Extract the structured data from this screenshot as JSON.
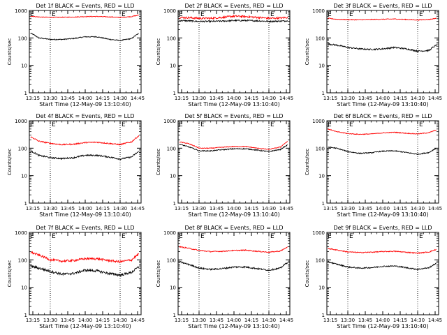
{
  "figure": {
    "start_time_label": "Start Time (12-May-09 13:10:40)",
    "ylabel": "Counts/sec",
    "legend_text": "BLACK = Events, RED = LLD",
    "marker_label": "E",
    "colors": {
      "events": "#000000",
      "lld": "#ff0000",
      "background": "#ffffff"
    }
  },
  "chart_data": [
    {
      "type": "line",
      "panel": "Det 1f",
      "title": "Det 1f  BLACK = Events, RED = LLD",
      "xlabel": "Start Time (12-May-09 13:10:40)",
      "ylabel": "Counts/sec",
      "x_ticks": [
        "13:15",
        "13:30",
        "13:45",
        "14:00",
        "14:15",
        "14:30",
        "14:45"
      ],
      "y_ticks": [
        "1",
        "10",
        "100",
        "1000"
      ],
      "yscale": "log",
      "ylim": [
        1,
        1000
      ],
      "xlim": [
        "13:12",
        "14:48"
      ],
      "event_markers": [
        "13:30",
        "14:30"
      ],
      "x": [
        "13:13",
        "13:20",
        "13:30",
        "13:40",
        "13:50",
        "14:00",
        "14:10",
        "14:20",
        "14:30",
        "14:40",
        "14:46"
      ],
      "series": [
        {
          "name": "Events",
          "color": "#000000",
          "noise": 0.04,
          "values": [
            150,
            100,
            88,
            88,
            95,
            110,
            110,
            90,
            80,
            95,
            145
          ]
        },
        {
          "name": "LLD",
          "color": "#ff0000",
          "noise": 0.03,
          "values": [
            620,
            580,
            560,
            565,
            575,
            600,
            605,
            585,
            560,
            600,
            680
          ]
        }
      ]
    },
    {
      "type": "line",
      "panel": "Det 2f",
      "title": "Det 2f  BLACK = Events, RED = LLD",
      "xlabel": "Start Time (12-May-09 13:10:40)",
      "ylabel": "Counts/sec",
      "x_ticks": [
        "13:15",
        "13:30",
        "13:45",
        "14:00",
        "14:15",
        "14:30",
        "14:45"
      ],
      "y_ticks": [
        "1",
        "10",
        "100",
        "1000"
      ],
      "yscale": "log",
      "ylim": [
        1,
        1000
      ],
      "xlim": [
        "13:12",
        "14:48"
      ],
      "event_markers": [
        "13:30",
        "14:30"
      ],
      "x": [
        "13:13",
        "13:20",
        "13:30",
        "13:40",
        "13:50",
        "14:00",
        "14:10",
        "14:20",
        "14:30",
        "14:40",
        "14:46"
      ],
      "series": [
        {
          "name": "Events",
          "color": "#000000",
          "noise": 0.06,
          "values": [
            430,
            420,
            400,
            400,
            410,
            430,
            430,
            420,
            400,
            410,
            420
          ]
        },
        {
          "name": "LLD",
          "color": "#ff0000",
          "noise": 0.08,
          "values": [
            560,
            550,
            520,
            520,
            560,
            620,
            600,
            560,
            520,
            530,
            560
          ]
        }
      ]
    },
    {
      "type": "line",
      "panel": "Det 3f",
      "title": "Det 3f  BLACK = Events, RED = LLD",
      "xlabel": "Start Time (12-May-09 13:10:40)",
      "ylabel": "Counts/sec",
      "x_ticks": [
        "13:15",
        "13:30",
        "13:45",
        "14:00",
        "14:15",
        "14:30",
        "14:45"
      ],
      "y_ticks": [
        "1",
        "10",
        "100",
        "1000"
      ],
      "yscale": "log",
      "ylim": [
        1,
        1000
      ],
      "xlim": [
        "13:12",
        "14:48"
      ],
      "event_markers": [
        "13:30",
        "14:30"
      ],
      "x": [
        "13:13",
        "13:20",
        "13:30",
        "13:40",
        "13:50",
        "14:00",
        "14:10",
        "14:20",
        "14:30",
        "14:40",
        "14:46"
      ],
      "series": [
        {
          "name": "Events",
          "color": "#000000",
          "noise": 0.06,
          "values": [
            60,
            55,
            45,
            40,
            38,
            40,
            45,
            40,
            33,
            35,
            55
          ]
        },
        {
          "name": "LLD",
          "color": "#ff0000",
          "noise": 0.03,
          "values": [
            520,
            480,
            460,
            460,
            470,
            480,
            490,
            470,
            450,
            470,
            520
          ]
        }
      ]
    },
    {
      "type": "line",
      "panel": "Det 4f",
      "title": "Det 4f  BLACK = Events, RED = LLD",
      "xlabel": "Start Time (12-May-09 13:10:40)",
      "ylabel": "Counts/sec",
      "x_ticks": [
        "13:15",
        "13:30",
        "13:45",
        "14:00",
        "14:15",
        "14:30",
        "14:45"
      ],
      "y_ticks": [
        "1",
        "10",
        "100",
        "1000"
      ],
      "yscale": "log",
      "ylim": [
        1,
        1000
      ],
      "xlim": [
        "13:12",
        "14:48"
      ],
      "event_markers": [
        "13:30",
        "14:30"
      ],
      "x": [
        "13:13",
        "13:20",
        "13:30",
        "13:40",
        "13:50",
        "14:00",
        "14:10",
        "14:20",
        "14:30",
        "14:40",
        "14:46"
      ],
      "series": [
        {
          "name": "Events",
          "color": "#000000",
          "noise": 0.06,
          "values": [
            80,
            55,
            45,
            42,
            45,
            55,
            55,
            48,
            40,
            48,
            75
          ]
        },
        {
          "name": "LLD",
          "color": "#ff0000",
          "noise": 0.05,
          "values": [
            260,
            180,
            150,
            135,
            140,
            160,
            165,
            150,
            135,
            170,
            280
          ]
        }
      ]
    },
    {
      "type": "line",
      "panel": "Det 5f",
      "title": "Det 5f  BLACK = Events, RED = LLD",
      "xlabel": "Start Time (12-May-09 13:10:40)",
      "ylabel": "Counts/sec",
      "x_ticks": [
        "13:15",
        "13:30",
        "13:45",
        "14:00",
        "14:15",
        "14:30",
        "14:45"
      ],
      "y_ticks": [
        "1",
        "10",
        "100",
        "1000"
      ],
      "yscale": "log",
      "ylim": [
        1,
        1000
      ],
      "xlim": [
        "13:12",
        "14:48"
      ],
      "event_markers": [
        "13:30",
        "14:30"
      ],
      "x": [
        "13:13",
        "13:20",
        "13:30",
        "13:40",
        "13:50",
        "14:00",
        "14:10",
        "14:20",
        "14:30",
        "14:40",
        "14:46"
      ],
      "series": [
        {
          "name": "Events",
          "color": "#000000",
          "noise": 0.04,
          "values": [
            140,
            115,
            80,
            80,
            88,
            95,
            95,
            85,
            75,
            90,
            130
          ]
        },
        {
          "name": "LLD",
          "color": "#ff0000",
          "noise": 0.03,
          "values": [
            170,
            150,
            100,
            100,
            108,
            115,
            115,
            100,
            90,
            110,
            175
          ]
        }
      ]
    },
    {
      "type": "line",
      "panel": "Det 6f",
      "title": "Det 6f  BLACK = Events, RED = LLD",
      "xlabel": "Start Time (12-May-09 13:10:40)",
      "ylabel": "Counts/sec",
      "x_ticks": [
        "13:15",
        "13:30",
        "13:45",
        "14:00",
        "14:15",
        "14:30",
        "14:45"
      ],
      "y_ticks": [
        "1",
        "10",
        "100",
        "1000"
      ],
      "yscale": "log",
      "ylim": [
        1,
        1000
      ],
      "xlim": [
        "13:12",
        "14:48"
      ],
      "event_markers": [
        "13:30",
        "14:30"
      ],
      "x": [
        "13:13",
        "13:20",
        "13:30",
        "13:40",
        "13:50",
        "14:00",
        "14:10",
        "14:20",
        "14:30",
        "14:40",
        "14:46"
      ],
      "series": [
        {
          "name": "Events",
          "color": "#000000",
          "noise": 0.04,
          "values": [
            110,
            100,
            75,
            65,
            68,
            78,
            80,
            70,
            60,
            70,
            100
          ]
        },
        {
          "name": "LLD",
          "color": "#ff0000",
          "noise": 0.03,
          "values": [
            500,
            400,
            340,
            320,
            330,
            360,
            380,
            350,
            330,
            370,
            460
          ]
        }
      ]
    },
    {
      "type": "line",
      "panel": "Det 7f",
      "title": "Det 7f  BLACK = Events, RED = LLD",
      "xlabel": "Start Time (12-May-09 13:10:40)",
      "ylabel": "Counts/sec",
      "x_ticks": [
        "13:15",
        "13:30",
        "13:45",
        "14:00",
        "14:15",
        "14:30",
        "14:45"
      ],
      "y_ticks": [
        "1",
        "10",
        "100",
        "1000"
      ],
      "yscale": "log",
      "ylim": [
        1,
        1000
      ],
      "xlim": [
        "13:12",
        "14:48"
      ],
      "event_markers": [
        "13:30",
        "14:30"
      ],
      "x": [
        "13:13",
        "13:20",
        "13:30",
        "13:40",
        "13:50",
        "14:00",
        "14:10",
        "14:20",
        "14:30",
        "14:40",
        "14:46"
      ],
      "series": [
        {
          "name": "Events",
          "color": "#000000",
          "noise": 0.1,
          "values": [
            60,
            50,
            38,
            30,
            32,
            42,
            40,
            32,
            28,
            35,
            55
          ]
        },
        {
          "name": "LLD",
          "color": "#ff0000",
          "noise": 0.09,
          "values": [
            190,
            150,
            100,
            90,
            95,
            110,
            110,
            95,
            85,
            100,
            160
          ]
        }
      ]
    },
    {
      "type": "line",
      "panel": "Det 8f",
      "title": "Det 8f  BLACK = Events, RED = LLD",
      "xlabel": "Start Time (12-May-09 13:10:40)",
      "ylabel": "Counts/sec",
      "x_ticks": [
        "13:15",
        "13:30",
        "13:45",
        "14:00",
        "14:15",
        "14:30",
        "14:45"
      ],
      "y_ticks": [
        "1",
        "10",
        "100",
        "1000"
      ],
      "yscale": "log",
      "ylim": [
        1,
        1000
      ],
      "xlim": [
        "13:12",
        "14:48"
      ],
      "event_markers": [
        "13:30",
        "14:30"
      ],
      "x": [
        "13:13",
        "13:20",
        "13:30",
        "13:40",
        "13:50",
        "14:00",
        "14:10",
        "14:20",
        "14:30",
        "14:40",
        "14:46"
      ],
      "series": [
        {
          "name": "Events",
          "color": "#000000",
          "noise": 0.06,
          "values": [
            85,
            70,
            50,
            45,
            48,
            55,
            55,
            48,
            42,
            50,
            80
          ]
        },
        {
          "name": "LLD",
          "color": "#ff0000",
          "noise": 0.04,
          "values": [
            300,
            270,
            220,
            200,
            205,
            220,
            225,
            205,
            190,
            210,
            290
          ]
        }
      ]
    },
    {
      "type": "line",
      "panel": "Det 9f",
      "title": "Det 9f  BLACK = Events, RED = LLD",
      "xlabel": "Start Time (12-May-09 13:10:40)",
      "ylabel": "Counts/sec",
      "x_ticks": [
        "13:15",
        "13:30",
        "13:45",
        "14:00",
        "14:15",
        "14:30",
        "14:45"
      ],
      "y_ticks": [
        "1",
        "10",
        "100",
        "1000"
      ],
      "yscale": "log",
      "ylim": [
        1,
        1000
      ],
      "xlim": [
        "13:12",
        "14:48"
      ],
      "event_markers": [
        "13:30",
        "14:30"
      ],
      "x": [
        "13:13",
        "13:20",
        "13:30",
        "13:40",
        "13:50",
        "14:00",
        "14:10",
        "14:20",
        "14:30",
        "14:40",
        "14:46"
      ],
      "series": [
        {
          "name": "Events",
          "color": "#000000",
          "noise": 0.05,
          "values": [
            85,
            70,
            55,
            50,
            52,
            58,
            60,
            52,
            45,
            52,
            75
          ]
        },
        {
          "name": "LLD",
          "color": "#ff0000",
          "noise": 0.04,
          "values": [
            260,
            230,
            195,
            185,
            190,
            200,
            205,
            190,
            175,
            195,
            240
          ]
        }
      ]
    }
  ]
}
